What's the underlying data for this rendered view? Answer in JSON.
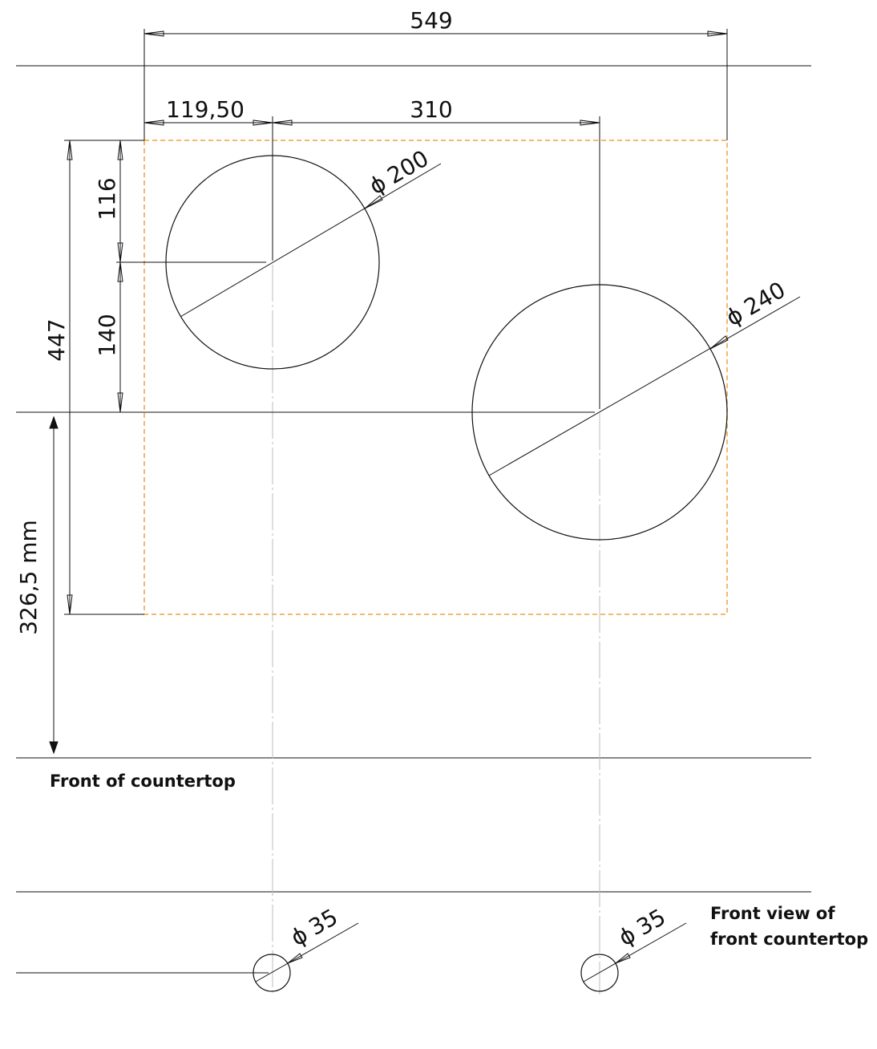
{
  "dimensions": {
    "overall_width": "549",
    "left_offset": "119,50",
    "center_spacing": "310",
    "depth": "447",
    "top_to_center": "116",
    "center_to_front": "140",
    "front_setback": "326,5 mm"
  },
  "diameters": {
    "small_burner": "200",
    "large_burner": "240",
    "knob_left": "35",
    "knob_right": "35"
  },
  "diameter_symbol": "ϕ",
  "notes": {
    "front_of_countertop": "Front of countertop",
    "front_view_line1": "Front view of",
    "front_view_line2": "front  countertop"
  },
  "colors": {
    "line": "#111111",
    "cutout_outline": "#f0a040",
    "centerline": "#bdbdbd"
  }
}
